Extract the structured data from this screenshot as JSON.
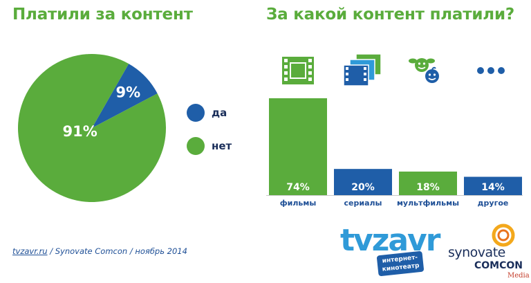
{
  "left_title": "Платили за контент",
  "right_title": "За какой контент платили?",
  "legend": [
    {
      "label": "да",
      "color": "#1f5ea8"
    },
    {
      "label": "нет",
      "color": "#5aac3c"
    }
  ],
  "source": {
    "link": "tvzavr.ru",
    "text": " / Synovate Comcon / ноябрь 2014"
  },
  "logo_tvzavr": {
    "word": "tvzavr",
    "tag_line1": "интернет-",
    "tag_line2": "кинотеатр"
  },
  "logo_synovate": {
    "word": "synovate",
    "comcon": "COMCON",
    "media": "Media"
  },
  "icons": [
    "film-icon",
    "series-icon",
    "kids-icon",
    "more-icon"
  ],
  "chart_data": [
    {
      "type": "pie",
      "title": "Платили за контент",
      "slices": [
        {
          "label": "да",
          "value": 9,
          "display": "9%",
          "color": "#1f5ea8"
        },
        {
          "label": "нет",
          "value": 91,
          "display": "91%",
          "color": "#5aac3c"
        }
      ],
      "legend": "right"
    },
    {
      "type": "bar",
      "title": "За какой контент платили?",
      "categories": [
        "фильмы",
        "сериалы",
        "мультфильмы",
        "другое"
      ],
      "values": [
        74,
        20,
        18,
        14
      ],
      "labels": [
        "74%",
        "20%",
        "18%",
        "14%"
      ],
      "colors": [
        "#5aac3c",
        "#1f5ea8",
        "#5aac3c",
        "#1f5ea8"
      ],
      "ylim": [
        0,
        74
      ],
      "grid": false
    }
  ]
}
